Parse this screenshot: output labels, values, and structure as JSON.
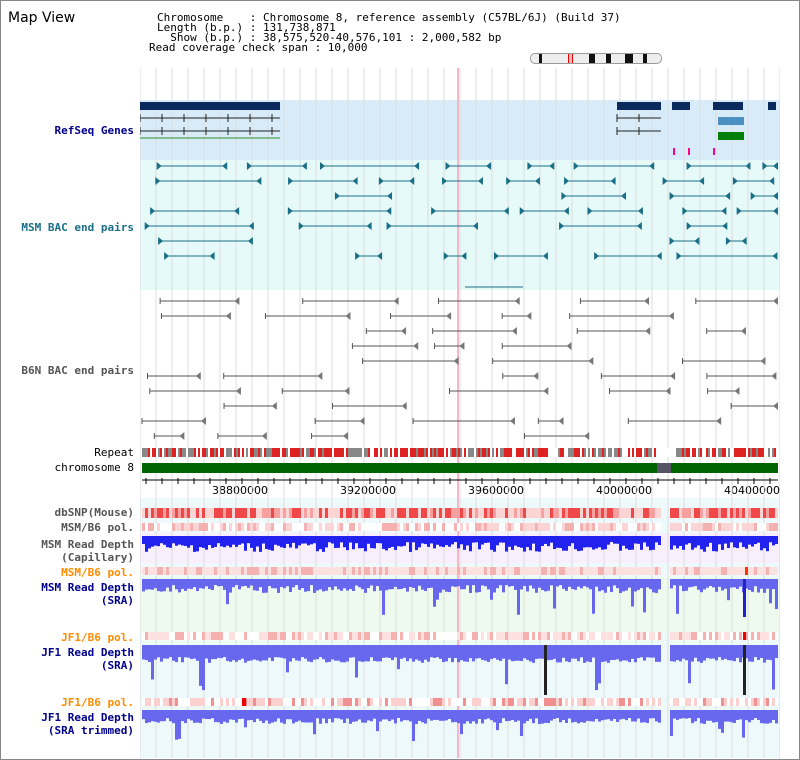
{
  "page": {
    "title": "Map View",
    "info": {
      "line1": "Chromosome    : Chromosome 8, reference assembly (C57BL/6J) (Build 37)",
      "line2": "Length (b.p.) : 131,738,871",
      "line3": "  Show (b.p.) : 38,575,520-40,576,101 : 2,000,582 bp",
      "line4": "Read coverage check span : 10,000"
    }
  },
  "tracks": {
    "refseq": "RefSeq Genes",
    "msm_bac": "MSM BAC end pairs",
    "b6n_bac": "B6N BAC end pairs",
    "repeat": "Repeat",
    "chromosome": "chromosome 8",
    "dbsnp": "dbSNP(Mouse)",
    "msm_pol": "MSM/B6 pol.",
    "msm_depth_cap_1": "MSM Read Depth",
    "msm_depth_cap_2": "(Capillary)",
    "msm_pol_sra": "MSM/B6 pol.",
    "msm_depth_sra_1": "MSM Read Depth",
    "msm_depth_sra_2": "(SRA)",
    "jf1_pol": "JF1/B6 pol.",
    "jf1_depth_1": "JF1 Read Depth",
    "jf1_depth_2": "(SRA)",
    "jf1_pol_trim": "JF1/B6 pol.",
    "jf1_depth_trim_1": "JF1 Read Depth",
    "jf1_depth_trim_2": "(SRA trimmed)"
  },
  "axis": {
    "ticks": [
      "38800000",
      "39200000",
      "39600000",
      "40000000",
      "40400000"
    ]
  },
  "colors": {
    "gene": "#0a2a5e",
    "msm_bac": "#1a6f86",
    "b6n_bac": "#555555",
    "repeat_red": "#dd2222",
    "chrom_green": "#006400",
    "depth_blue": "#2222ee"
  }
}
